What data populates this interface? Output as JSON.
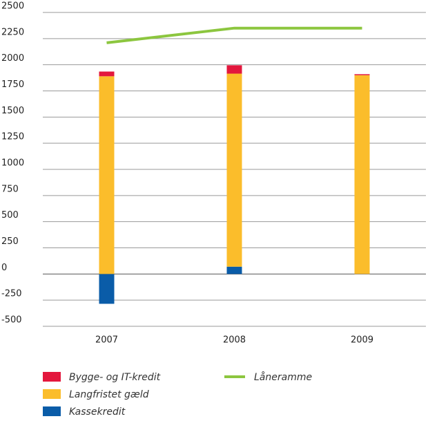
{
  "chart_data": {
    "type": "bar",
    "categories": [
      "2007",
      "2008",
      "2009"
    ],
    "series": [
      {
        "name": "Bygge- og IT-kredit",
        "color": "#e3173d",
        "values": [
          45,
          80,
          10
        ]
      },
      {
        "name": "Langfristet gæld",
        "color": "#fbbd2b",
        "values": [
          1890,
          1845,
          1900
        ]
      },
      {
        "name": "Kassekredit",
        "color": "#0a5ca8",
        "values": [
          -285,
          70,
          0
        ]
      },
      {
        "name": "Låneramme",
        "color": "#8cc63f",
        "type": "line",
        "values": [
          2210,
          2350,
          2350
        ]
      }
    ],
    "stacked": true,
    "ylim": [
      -500,
      2500
    ],
    "yticks": [
      -500,
      -250,
      0,
      250,
      500,
      750,
      1000,
      1250,
      1500,
      1750,
      2000,
      2250,
      2500
    ],
    "grid": true
  }
}
